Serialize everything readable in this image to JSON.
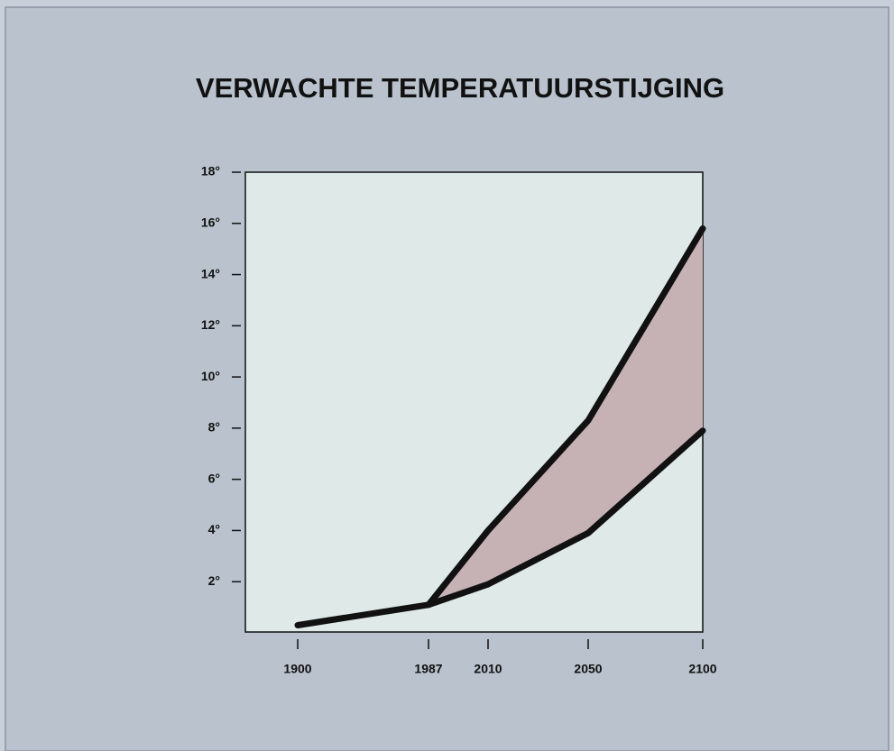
{
  "chart_data": {
    "type": "range-area",
    "title": "VERWACHTE TEMPERATUURSTIJGING",
    "categories": [
      "1900",
      "1987",
      "2010",
      "2050",
      "2100"
    ],
    "series": [
      {
        "color": "#111111",
        "values": [
          0.3,
          1.1,
          1.9,
          3.9,
          7.9
        ]
      },
      {
        "color": "#111111",
        "values": [
          null,
          1.1,
          4.0,
          8.3,
          15.8
        ]
      }
    ],
    "fill": "#c6b2b4",
    "ylim": [
      0,
      18
    ],
    "yticks": [
      {
        "value": 2,
        "label": "2°"
      },
      {
        "value": 4,
        "label": "4°"
      },
      {
        "value": 6,
        "label": "6°"
      },
      {
        "value": 8,
        "label": "8°"
      },
      {
        "value": 10,
        "label": "10°"
      },
      {
        "value": 12,
        "label": "12°"
      },
      {
        "value": 14,
        "label": "14°"
      },
      {
        "value": 16,
        "label": "16°"
      },
      {
        "value": 18,
        "label": "18°"
      }
    ]
  }
}
